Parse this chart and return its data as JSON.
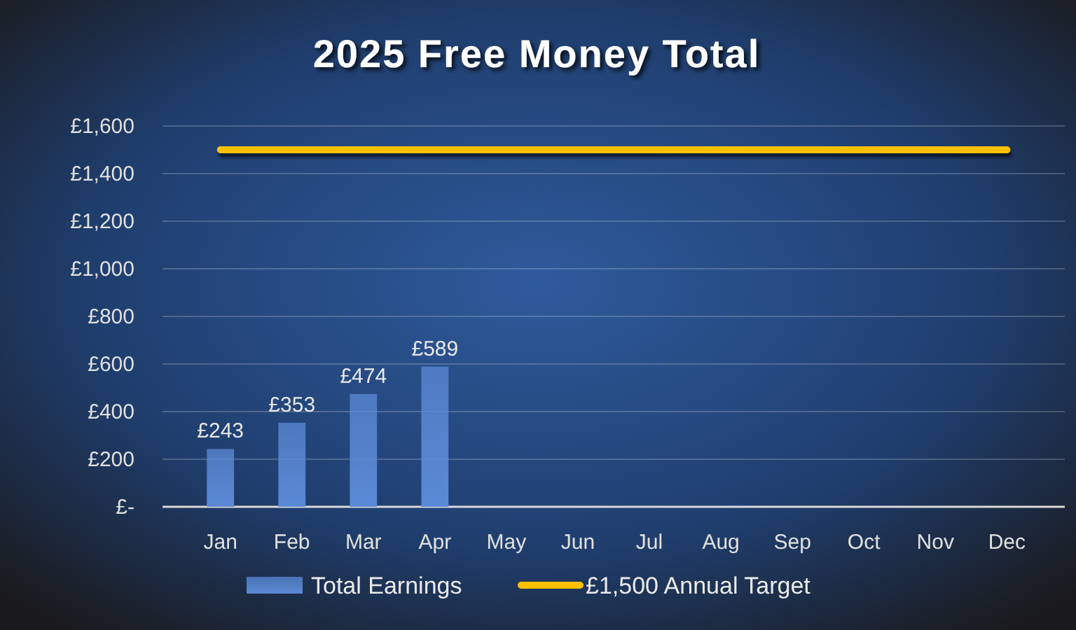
{
  "chart_data": {
    "type": "bar",
    "title": "2025 Free Money Total",
    "categories": [
      "Jan",
      "Feb",
      "Mar",
      "Apr",
      "May",
      "Jun",
      "Jul",
      "Aug",
      "Sep",
      "Oct",
      "Nov",
      "Dec"
    ],
    "series": [
      {
        "name": "Total Earnings",
        "color": "#5b8ad6",
        "values": [
          243,
          353,
          474,
          589,
          null,
          null,
          null,
          null,
          null,
          null,
          null,
          null
        ],
        "value_labels": [
          "£243",
          "£353",
          "£474",
          "£589",
          null,
          null,
          null,
          null,
          null,
          null,
          null,
          null
        ]
      },
      {
        "name": "£1,500 Annual Target",
        "type": "line",
        "color": "#ffc000",
        "values": [
          1500,
          1500,
          1500,
          1500,
          1500,
          1500,
          1500,
          1500,
          1500,
          1500,
          1500,
          1500
        ]
      }
    ],
    "ylim": [
      0,
      1600
    ],
    "yticks": [
      {
        "value": 0,
        "label": "£-"
      },
      {
        "value": 200,
        "label": "£200"
      },
      {
        "value": 400,
        "label": "£400"
      },
      {
        "value": 600,
        "label": "£600"
      },
      {
        "value": 800,
        "label": "£800"
      },
      {
        "value": 1000,
        "label": "£1,000"
      },
      {
        "value": 1200,
        "label": "£1,200"
      },
      {
        "value": 1400,
        "label": "£1,400"
      },
      {
        "value": 1600,
        "label": "£1,600"
      }
    ],
    "grid": "y",
    "legend": "bottom"
  }
}
